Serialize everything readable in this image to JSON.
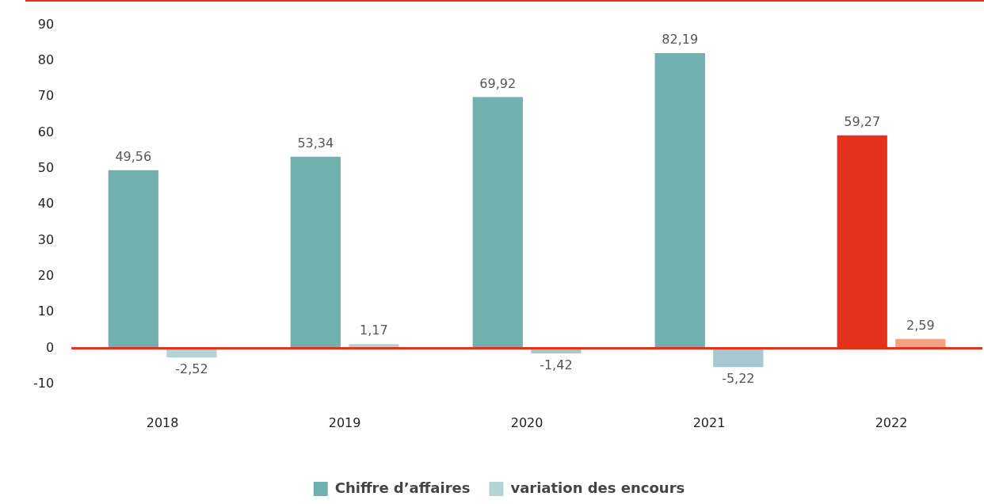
{
  "chart_data": {
    "type": "bar",
    "categories": [
      "2018",
      "2019",
      "2020",
      "2021",
      "2022"
    ],
    "series": [
      {
        "name": "Chiffre d’affaires",
        "color": "#70b0ae",
        "colors": [
          "#70b0ae",
          "#70b0ae",
          "#70b0ae",
          "#70b0ae",
          "#e5321c"
        ],
        "values": [
          49.56,
          53.34,
          69.92,
          82.19,
          59.27
        ],
        "value_labels": [
          "49,56",
          "53,34",
          "69,92",
          "82,19",
          "59,27"
        ]
      },
      {
        "name": "variation des encours",
        "color": "#b2d4d2",
        "colors": [
          "#b2d4d2",
          "#b2d4d2",
          "#a6c8d0",
          "#a6c8d0",
          "#f2a382"
        ],
        "values": [
          -2.52,
          1.17,
          -1.42,
          -5.22,
          2.59
        ],
        "value_labels": [
          "-2,52",
          "1,17",
          "-1,42",
          "-5,22",
          "2,59"
        ]
      }
    ],
    "ylim": [
      -10,
      90
    ],
    "yticks": [
      -10,
      0,
      10,
      20,
      30,
      40,
      50,
      60,
      70,
      80,
      90
    ],
    "grid": false,
    "legend": "bottom",
    "ref_lines": [
      {
        "axis": "y",
        "value": 0,
        "color": "#e5321c"
      }
    ]
  }
}
